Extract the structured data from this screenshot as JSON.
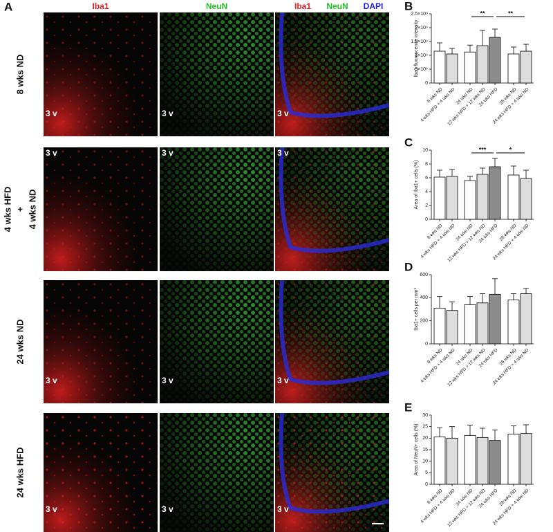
{
  "panel_a": {
    "label": "A",
    "headers": {
      "iba1": "Iba1",
      "neun": "NeuN",
      "merge": [
        "Iba1",
        "NeuN",
        "DAPI"
      ]
    },
    "rows": [
      [
        "8 wks ND"
      ],
      [
        "4 wks HFD",
        "+",
        "4 wks ND"
      ],
      [
        "24 wks ND"
      ],
      [
        "24 wks HFD"
      ]
    ],
    "inset_labels": [
      "3 v",
      "3 v",
      "3 v",
      "3 v",
      "3 v",
      "3 v",
      "3 v",
      "3 v",
      "3 v",
      "3 v",
      "3 v",
      "3 v"
    ]
  },
  "chart_data": [
    {
      "type": "bar",
      "label": "B",
      "y_label": "Iba1 fluorescence intensity",
      "categories": [
        "8 wks ND",
        "4 wks HFD + 4 wks ND",
        "24 wks ND",
        "12 wks HFD + 12 wks ND",
        "24 wks HFD",
        "28 wks ND",
        "24 wks HFD + 4 wks ND"
      ],
      "colors": [
        "#ffffff",
        "#dddddd",
        "#ffffff",
        "#dddddd",
        "#8c8c8c",
        "#ffffff",
        "#dddddd"
      ],
      "values": [
        1150000000,
        1050000000,
        1120000000,
        1350000000,
        1650000000,
        1050000000,
        1150000000
      ],
      "errors": [
        300000000,
        200000000,
        250000000,
        550000000,
        300000000,
        250000000,
        250000000
      ],
      "ylim": [
        0,
        2500000000
      ],
      "yticks": [
        0,
        {
          "value": 500000000,
          "label": "5×10⁸"
        },
        {
          "value": 1000000000,
          "label": "1×10⁹"
        },
        {
          "value": 1500000000,
          "label": "1.5×10⁹"
        },
        {
          "value": 2000000000,
          "label": "2×10⁹"
        },
        {
          "value": 2500000000,
          "label": "2.5×10⁹"
        }
      ],
      "significance": [
        {
          "from": "24 wks ND",
          "to": "24 wks HFD",
          "label": "**"
        },
        {
          "from": "24 wks HFD",
          "to": "24 wks HFD + 4 wks ND",
          "label": "**"
        }
      ]
    },
    {
      "type": "bar",
      "label": "C",
      "y_label": "Area of Iba1+ cells (%)",
      "categories": [
        "8 wks ND",
        "4 wks HFD + 4 wks ND",
        "24 wks ND",
        "12 wks HFD + 12 wks ND",
        "24 wks HFD",
        "28 wks ND",
        "24 wks HFD + 4 wks ND"
      ],
      "colors": [
        "#ffffff",
        "#dddddd",
        "#ffffff",
        "#dddddd",
        "#8c8c8c",
        "#ffffff",
        "#dddddd"
      ],
      "values": [
        6.1,
        6.2,
        5.6,
        6.5,
        7.6,
        6.4,
        5.9
      ],
      "errors": [
        1.0,
        1.0,
        0.6,
        0.9,
        1.2,
        1.3,
        1.2
      ],
      "ylim": [
        0,
        10
      ],
      "yticks": [
        0,
        2,
        4,
        6,
        8,
        10
      ],
      "significance": [
        {
          "from": "24 wks ND",
          "to": "24 wks HFD",
          "label": "***"
        },
        {
          "from": "24 wks HFD",
          "to": "24 wks HFD + 4 wks ND",
          "label": "*"
        }
      ]
    },
    {
      "type": "bar",
      "label": "D",
      "y_label": "Iba1+ cells per mm²",
      "categories": [
        "8 wks ND",
        "4 wks HFD + 4 wks ND",
        "24 wks ND",
        "12 wks HFD + 12 wks ND",
        "24 wks HFD",
        "28 wks ND",
        "24 wks HFD + 4 wks ND"
      ],
      "colors": [
        "#ffffff",
        "#dddddd",
        "#ffffff",
        "#dddddd",
        "#8c8c8c",
        "#ffffff",
        "#dddddd"
      ],
      "values": [
        310,
        290,
        340,
        355,
        430,
        380,
        435
      ],
      "errors": [
        100,
        75,
        70,
        80,
        135,
        55,
        45
      ],
      "ylim": [
        0,
        600
      ],
      "yticks": [
        0,
        200,
        400,
        600
      ],
      "significance": []
    },
    {
      "type": "bar",
      "label": "E",
      "y_label": "Area of NeuN+ cells (%)",
      "categories": [
        "8 wks ND",
        "4 wks HFD + 4 wks ND",
        "24 wks ND",
        "12 wks HFD + 12 wks ND",
        "24 wks HFD",
        "28 wks ND",
        "24 wks HFD + 4 wks ND"
      ],
      "colors": [
        "#ffffff",
        "#dddddd",
        "#ffffff",
        "#dddddd",
        "#8c8c8c",
        "#ffffff",
        "#dddddd"
      ],
      "values": [
        20.5,
        20,
        21.2,
        20.3,
        19,
        21.8,
        22
      ],
      "errors": [
        4,
        5,
        4.5,
        4,
        4.5,
        3.5,
        3.8
      ],
      "ylim": [
        0,
        30
      ],
      "yticks": [
        0,
        5,
        10,
        15,
        20,
        25,
        30
      ],
      "significance": []
    }
  ]
}
